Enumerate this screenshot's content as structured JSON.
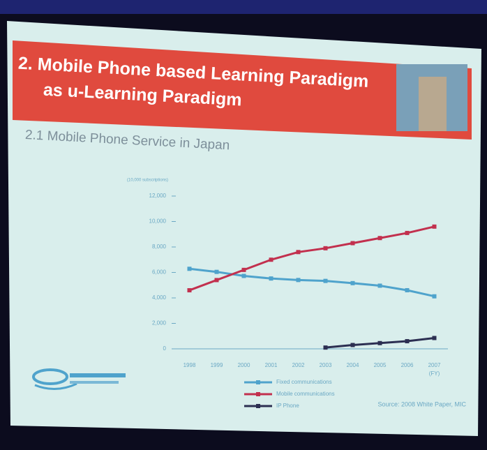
{
  "header": {
    "title_line1": "2. Mobile Phone based Learning Paradigm",
    "title_line2": "as u-Learning Paradigm",
    "subtitle": "2.1 Mobile Phone Service in Japan"
  },
  "chart_data": {
    "type": "line",
    "y_label": "(10,000 subscriptions)",
    "x_note": "(FY)",
    "categories": [
      "1998",
      "1999",
      "2000",
      "2001",
      "2002",
      "2003",
      "2004",
      "2005",
      "2006",
      "2007"
    ],
    "series": [
      {
        "name": "Fixed communications",
        "color": "#4fa3cc",
        "values": [
          6285,
          6044,
          5726,
          5525,
          5406,
          5335,
          5160,
          4960,
          4604,
          4125
        ]
      },
      {
        "name": "Mobile communications",
        "color": "#c2304e",
        "values": [
          4600,
          5400,
          6200,
          7000,
          7600,
          7900,
          8300,
          8700,
          9100,
          9600
        ]
      },
      {
        "name": "IP Phone",
        "color": "#2c2f52",
        "values": [
          null,
          null,
          null,
          null,
          null,
          100,
          300,
          450,
          600,
          850
        ]
      }
    ],
    "ylim": [
      0,
      12000
    ],
    "yticks": [
      0,
      {
        "value": 2000,
        "label": "2,000"
      },
      {
        "value": 4000,
        "label": "4,000"
      },
      {
        "value": 6000,
        "label": "6,000"
      },
      {
        "value": 8000,
        "label": "8,000"
      },
      {
        "value": 10000,
        "label": "10,000"
      },
      {
        "value": 12000,
        "label": "12,000"
      }
    ],
    "source": "Source: 2008 White Paper, MIC"
  }
}
